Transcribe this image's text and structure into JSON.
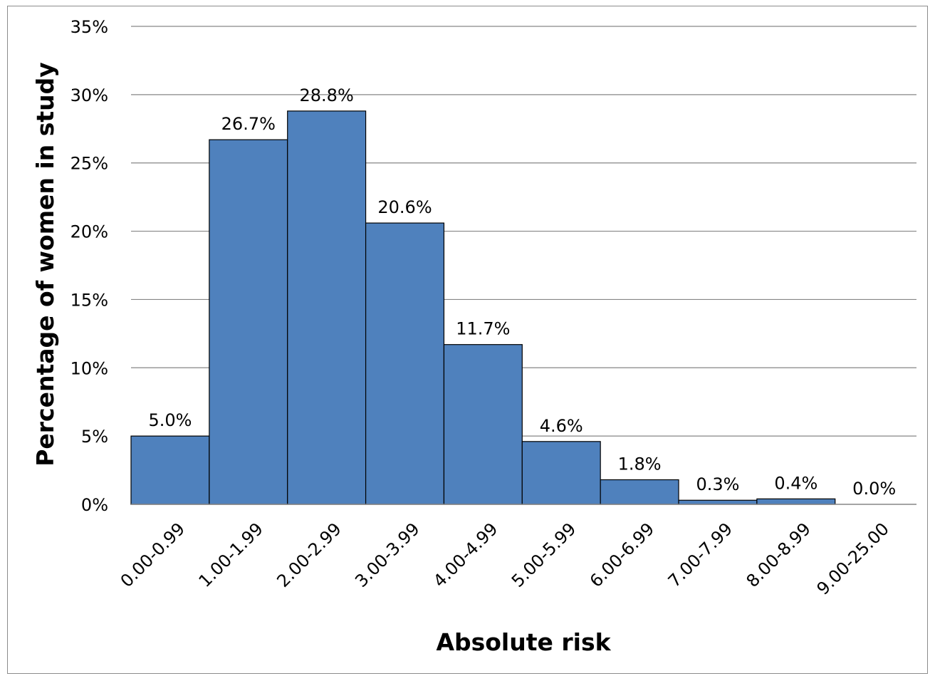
{
  "chart_data": {
    "type": "bar",
    "title": "",
    "xlabel": "Absolute risk",
    "ylabel": "Percentage of women in study",
    "categories": [
      "0.00-0.99",
      "1.00-1.99",
      "2.00-2.99",
      "3.00-3.99",
      "4.00-4.99",
      "5.00-5.99",
      "6.00-6.99",
      "7.00-7.99",
      "8.00-8.99",
      "9.00-25.00"
    ],
    "values": [
      5.0,
      26.7,
      28.8,
      20.6,
      11.7,
      4.6,
      1.8,
      0.3,
      0.4,
      0.0
    ],
    "data_labels": [
      "5.0%",
      "26.7%",
      "28.8%",
      "20.6%",
      "11.7%",
      "4.6%",
      "1.8%",
      "0.3%",
      "0.4%",
      "0.0%"
    ],
    "ylim": [
      0,
      35
    ],
    "yticks": [
      0,
      5,
      10,
      15,
      20,
      25,
      30,
      35
    ],
    "ytick_labels": [
      "0%",
      "5%",
      "10%",
      "15%",
      "20%",
      "25%",
      "30%",
      "35%"
    ],
    "grid": "horizontal",
    "legend": "none",
    "colors": {
      "bar": "#4f81bd",
      "bar_edge": "#000000",
      "grid": "#868686"
    }
  }
}
